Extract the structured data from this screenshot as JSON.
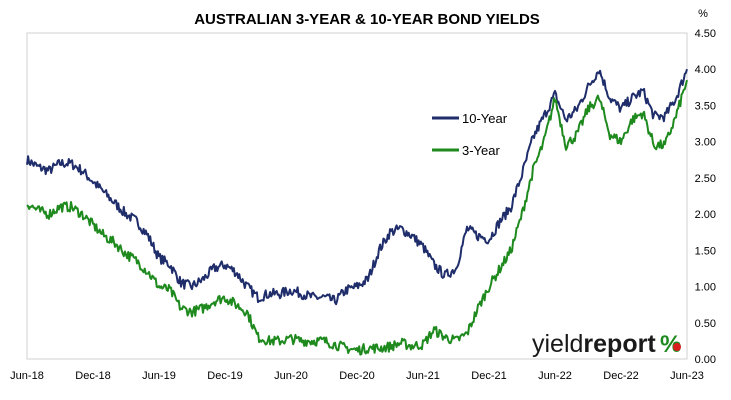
{
  "chart_data": {
    "type": "line",
    "title": "AUSTRALIAN 3-YEAR & 10-YEAR BOND YIELDS",
    "ylabel": "%",
    "xlabel": "",
    "ylim": [
      0,
      4.5
    ],
    "yticks": [
      "0.00",
      "0.50",
      "1.00",
      "1.50",
      "2.00",
      "2.50",
      "3.00",
      "3.50",
      "4.00",
      "4.50"
    ],
    "x_ticks": [
      "Jun-18",
      "Dec-18",
      "Jun-19",
      "Dec-19",
      "Jun-20",
      "Dec-20",
      "Jun-21",
      "Dec-21",
      "Jun-22",
      "Dec-22",
      "Jun-23"
    ],
    "x_range": [
      "2018-06",
      "2023-06"
    ],
    "grid": false,
    "legend_placement": "center-right",
    "x": [
      "2018-06",
      "2018-07",
      "2018-08",
      "2018-09",
      "2018-10",
      "2018-11",
      "2018-12",
      "2019-01",
      "2019-02",
      "2019-03",
      "2019-04",
      "2019-05",
      "2019-06",
      "2019-07",
      "2019-08",
      "2019-09",
      "2019-10",
      "2019-11",
      "2019-12",
      "2020-01",
      "2020-02",
      "2020-03",
      "2020-04",
      "2020-05",
      "2020-06",
      "2020-07",
      "2020-08",
      "2020-09",
      "2020-10",
      "2020-11",
      "2020-12",
      "2021-01",
      "2021-02",
      "2021-03",
      "2021-04",
      "2021-05",
      "2021-06",
      "2021-07",
      "2021-08",
      "2021-09",
      "2021-10",
      "2021-11",
      "2021-12",
      "2022-01",
      "2022-02",
      "2022-03",
      "2022-04",
      "2022-05",
      "2022-06",
      "2022-07",
      "2022-08",
      "2022-09",
      "2022-10",
      "2022-11",
      "2022-12",
      "2023-01",
      "2023-02",
      "2023-03",
      "2023-04",
      "2023-05",
      "2023-06"
    ],
    "series": [
      {
        "name": "10-Year",
        "color": "#1f2d6b",
        "values": [
          2.75,
          2.65,
          2.6,
          2.7,
          2.7,
          2.6,
          2.45,
          2.3,
          2.15,
          2.0,
          1.9,
          1.7,
          1.4,
          1.3,
          1.05,
          1.0,
          1.1,
          1.25,
          1.3,
          1.2,
          1.0,
          0.85,
          0.9,
          0.9,
          0.95,
          0.9,
          0.85,
          0.85,
          0.8,
          0.95,
          1.0,
          1.1,
          1.5,
          1.75,
          1.8,
          1.7,
          1.55,
          1.3,
          1.15,
          1.25,
          1.8,
          1.7,
          1.65,
          1.9,
          2.1,
          2.55,
          3.05,
          3.35,
          3.65,
          3.3,
          3.45,
          3.75,
          4.0,
          3.6,
          3.45,
          3.6,
          3.7,
          3.35,
          3.35,
          3.6,
          4.0
        ]
      },
      {
        "name": "3-Year",
        "color": "#1e8a1e",
        "values": [
          2.15,
          2.05,
          2.0,
          2.1,
          2.1,
          2.0,
          1.85,
          1.7,
          1.6,
          1.45,
          1.35,
          1.2,
          1.0,
          0.95,
          0.7,
          0.65,
          0.7,
          0.8,
          0.85,
          0.75,
          0.65,
          0.3,
          0.25,
          0.25,
          0.28,
          0.25,
          0.25,
          0.25,
          0.2,
          0.15,
          0.12,
          0.15,
          0.15,
          0.17,
          0.22,
          0.18,
          0.2,
          0.4,
          0.3,
          0.25,
          0.35,
          0.7,
          1.0,
          1.25,
          1.5,
          2.0,
          2.6,
          3.0,
          3.6,
          2.95,
          3.1,
          3.45,
          3.6,
          3.1,
          3.0,
          3.3,
          3.4,
          2.95,
          2.95,
          3.35,
          3.85
        ]
      }
    ]
  },
  "branding": {
    "logo_regular": "yield",
    "logo_bold": "report",
    "logo_pct": "%"
  }
}
